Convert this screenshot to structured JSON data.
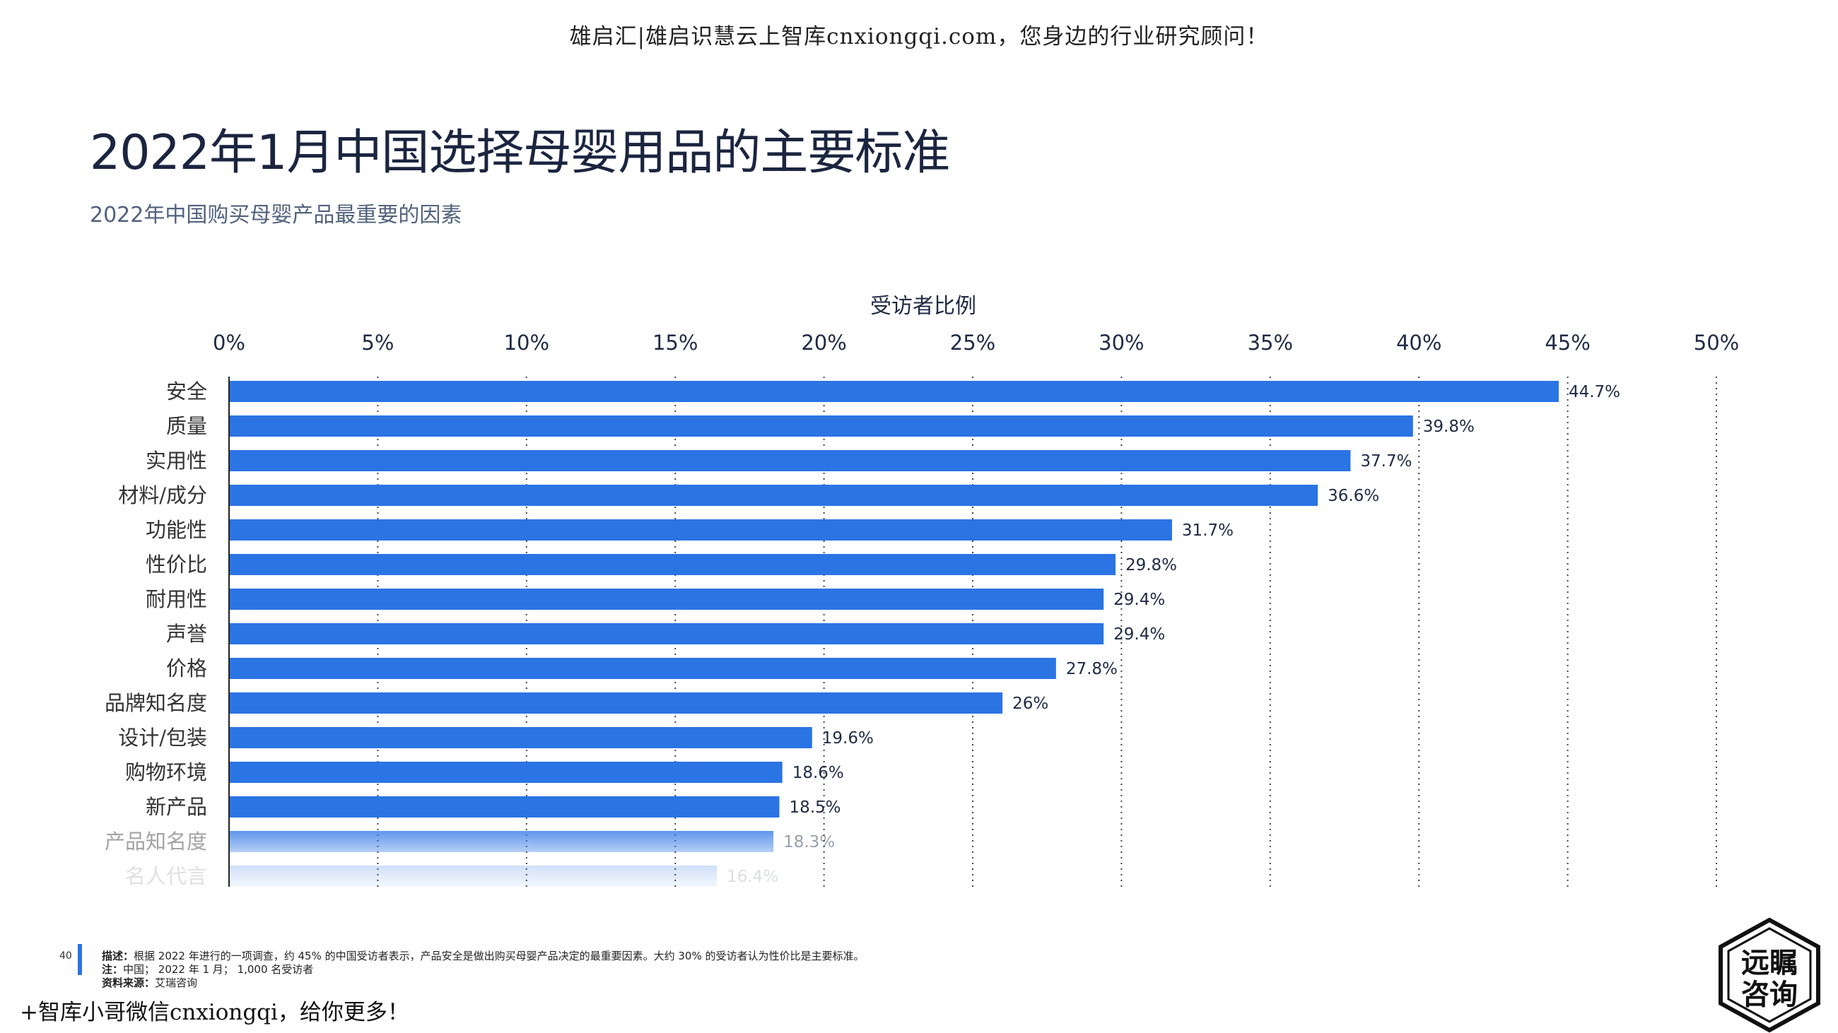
{
  "watermark_top": "雄启汇|雄启识慧云上智库cnxiongqi.com，您身边的行业研究顾问！",
  "title": "2022年1月中国选择母婴用品的主要标准",
  "subtitle": "2022年中国购买母婴产品最重要的因素",
  "chart_data": {
    "type": "bar",
    "orientation": "horizontal",
    "axis_title": "受访者比例",
    "xlim": [
      0,
      50
    ],
    "ticks": [
      "0%",
      "5%",
      "10%",
      "15%",
      "20%",
      "25%",
      "30%",
      "35%",
      "40%",
      "45%",
      "50%"
    ],
    "grid": "vertical-dotted",
    "bar_color": "#2b74e4",
    "categories": [
      "安全",
      "质量",
      "实用性",
      "材料/成分",
      "功能性",
      "性价比",
      "耐用性",
      "声誉",
      "价格",
      "品牌知名度",
      "设计/包装",
      "购物环境",
      "新产品",
      "产品知名度",
      "名人代言"
    ],
    "values": [
      44.7,
      39.8,
      37.7,
      36.6,
      31.7,
      29.8,
      29.4,
      29.4,
      27.8,
      26,
      19.6,
      18.6,
      18.5,
      18.3,
      16.4
    ],
    "value_labels": [
      "44.7%",
      "39.8%",
      "37.7%",
      "36.6%",
      "31.7%",
      "29.8%",
      "29.4%",
      "29.4%",
      "27.8%",
      "26%",
      "19.6%",
      "18.6%",
      "18.5%",
      "18.3%",
      "16.4%"
    ]
  },
  "footer": {
    "page_number": "40",
    "desc_label": "描述：",
    "desc_text": "根据 2022 年进行的一项调查，约 45% 的中国受访者表示，产品安全是做出购买母婴产品决定的最重要因素。大约 30% 的受访者认为性价比是主要标准。",
    "note_label": "注：",
    "note_text": "中国； 2022 年 1 月； 1,000 名受访者",
    "source_label": "资料来源：",
    "source_text": "艾瑞咨询"
  },
  "watermark_bottom": "+智库小哥微信cnxiongqi，给你更多！",
  "logo": {
    "line1": "远瞩",
    "line2": "咨询"
  }
}
